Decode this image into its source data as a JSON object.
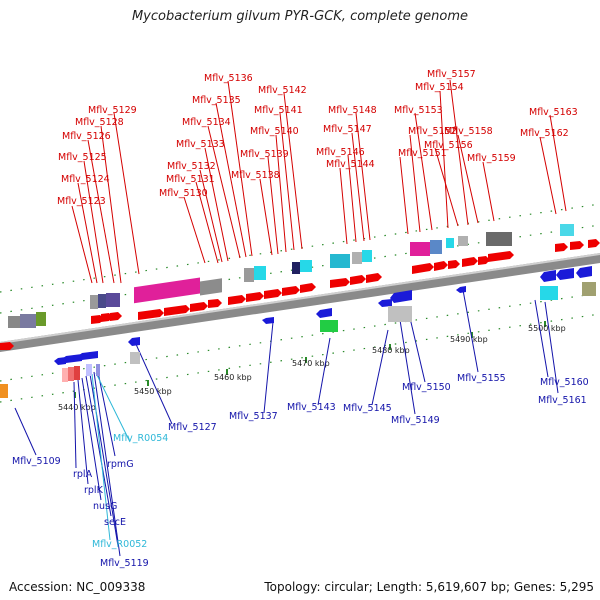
{
  "title": "Mycobacterium gilvum PYR-GCK, complete genome",
  "footer": {
    "accession": "Accession: NC_009338",
    "stats": "Topology: circular; Length: 5,619,607 bp; Genes: 5,295"
  },
  "colors": {
    "forward_label": "#d40000",
    "reverse_label": "#1414aa",
    "rna_label": "#2fb8d8",
    "forward_gene": "#ee0000",
    "reverse_gene": "#1a1ad8",
    "backbone": "#8a8a8a",
    "tick": "#2a8a2a"
  },
  "scale_labels": [
    "5440 kbp",
    "5450 kbp",
    "5460 kbp",
    "5470 kbp",
    "5480 kbp",
    "5490 kbp",
    "5500 kbp"
  ],
  "top_labels": [
    "Mflv_5123",
    "Mflv_5124",
    "Mflv_5125",
    "Mflv_5126",
    "Mflv_5128",
    "Mflv_5129",
    "Mflv_5130",
    "Mflv_5131",
    "Mflv_5132",
    "Mflv_5133",
    "Mflv_5134",
    "Mflv_5135",
    "Mflv_5136",
    "Mflv_5138",
    "Mflv_5139",
    "Mflv_5140",
    "Mflv_5141",
    "Mflv_5142",
    "Mflv_5144",
    "Mflv_5146",
    "Mflv_5147",
    "Mflv_5148",
    "Mflv_5151",
    "Mflv_5152",
    "Mflv_5153",
    "Mflv_5154",
    "Mflv_5156",
    "Mflv_5157",
    "Mflv_5158",
    "Mflv_5159",
    "Mflv_5162",
    "Mflv_5163"
  ],
  "bottom_labels": [
    "Mflv_5109",
    "rplA",
    "rplK",
    "nusG",
    "secE",
    "Mflv_R0052",
    "Mflv_5119",
    "Mflv_R0054",
    "rpmG",
    "Mflv_5127",
    "Mflv_5137",
    "Mflv_5143",
    "Mflv_5145",
    "Mflv_5149",
    "Mflv_5150",
    "Mflv_5155",
    "Mflv_5160",
    "Mflv_5161"
  ]
}
